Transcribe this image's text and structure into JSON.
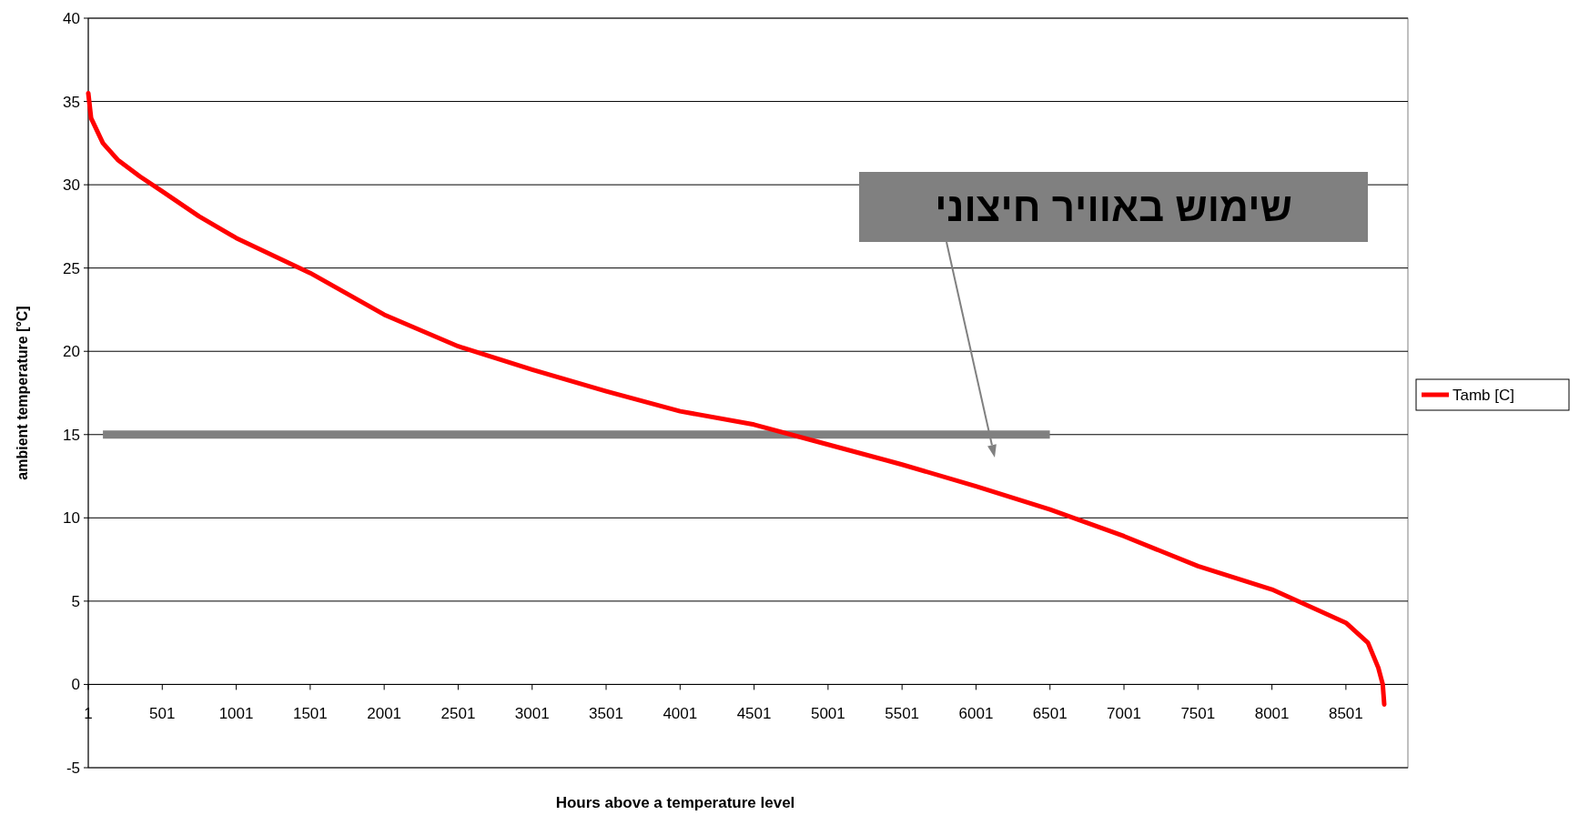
{
  "chart_data": {
    "type": "line",
    "xlabel": "Hours above a temperature level",
    "ylabel": "ambient temperature [°C]",
    "xlim": [
      1,
      8920
    ],
    "xticks": [
      1,
      501,
      1001,
      1501,
      2001,
      2501,
      3001,
      3501,
      4001,
      4501,
      5001,
      5501,
      6001,
      6501,
      7001,
      7501,
      8001,
      8501
    ],
    "ylim": [
      -5,
      40
    ],
    "yticks": [
      -5,
      0,
      5,
      10,
      15,
      20,
      25,
      30,
      35,
      40
    ],
    "grid": "y",
    "legend": "right",
    "series": [
      {
        "name": "Tamb [C]",
        "color": "#ff0000",
        "x": [
          1,
          20,
          100,
          200,
          350,
          501,
          750,
          1001,
          1501,
          2001,
          2501,
          3001,
          3501,
          4001,
          4501,
          5001,
          5501,
          6001,
          6501,
          7001,
          7501,
          8001,
          8301,
          8501,
          8650,
          8720,
          8750,
          8760
        ],
        "values": [
          35.5,
          34,
          32.5,
          31.5,
          30.5,
          29.6,
          28.1,
          26.8,
          24.7,
          22.2,
          20.3,
          18.9,
          17.6,
          16.4,
          15.6,
          14.4,
          13.2,
          11.9,
          10.5,
          8.9,
          7.1,
          5.7,
          4.5,
          3.7,
          2.5,
          1,
          0,
          -1.2
        ]
      },
      {
        "color": "#808080",
        "x": [
          100,
          6500
        ],
        "values": [
          15,
          15
        ]
      }
    ],
    "annotations": [
      "שימוש באוויר חיצוני"
    ]
  }
}
